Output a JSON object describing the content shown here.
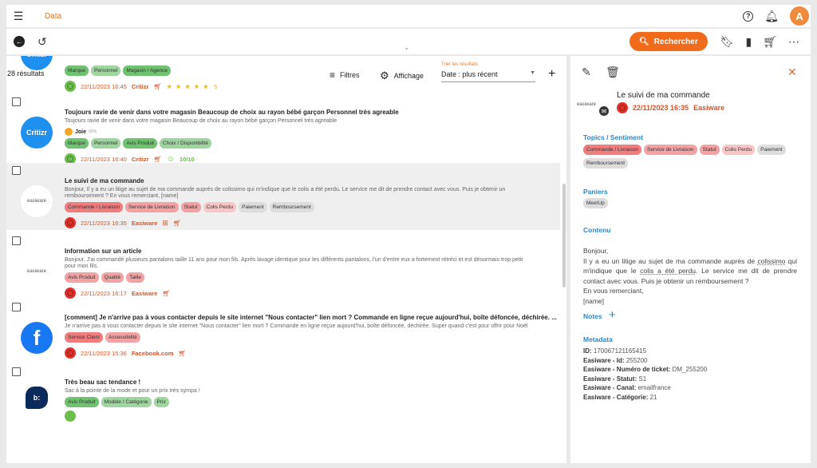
{
  "app": {
    "title": "Data",
    "avatar": "A"
  },
  "toolbar": {
    "search_label": "Rechercher"
  },
  "list": {
    "count": "28 résultats",
    "filters": "Filtres",
    "display": "Affichage",
    "sort_label": "Trier les résultats",
    "sort_value": "Date : plus récent",
    "items": [
      {
        "partial": true,
        "logo": "Critizr",
        "logo_color": "#1e90f0",
        "badge": "★",
        "tags": [
          [
            "Marque",
            "g1"
          ],
          [
            "Personnel",
            "g2"
          ],
          [
            "Magasin / Agence",
            "g1"
          ]
        ],
        "sentiment": "pos",
        "date": "22/11/2023 16:45",
        "source": "Critizr",
        "cart": true,
        "stars": "★ ★ ★ ★ ★",
        "rating": "5"
      },
      {
        "title": "Toujours ravie de venir dans votre magasin Beaucoup de choix au rayon bébé garçon Personnel très agreable",
        "desc": "Toujours ravie de venir dans votre magasin Beaucoup de choix au rayon bébé garçon Personnel très agreable",
        "logo": "Critizr",
        "logo_color": "#1e90f0",
        "badge": "⌕",
        "emotion": "Joie",
        "emotion_pct": "93%",
        "tags": [
          [
            "Marque",
            "g1"
          ],
          [
            "Personnel",
            "g2"
          ],
          [
            "Avis Produit",
            "g1"
          ],
          [
            "Choix / Disponibilité",
            "g2"
          ]
        ],
        "sentiment": "pos",
        "date": "22/11/2023 16:40",
        "source": "Critizr",
        "cart": true,
        "score": "10/10"
      },
      {
        "selected": true,
        "title": "Le suivi de ma commande",
        "desc": "Bonjour, Il y a eu un litige au sujet de ma commande auprès de colissimo qui m'indique que le colis a été perdu. Le service me dit de prendre contact avec vous. Puis je obtenir un remboursement ? En vous remerciant, [name]",
        "logo": "easiware",
        "logo_color": "#fff",
        "badge": "✉",
        "tags": [
          [
            "Commande / Livraison",
            "r1"
          ],
          [
            "Service de Livraison",
            "r2"
          ],
          [
            "Statut",
            "r2"
          ],
          [
            "Colis Perdu",
            "r3"
          ],
          [
            "Paiement",
            "x"
          ],
          [
            "Remboursement",
            "x"
          ]
        ],
        "sentiment": "neg",
        "date": "22/11/2023 16:35",
        "source": "Easiware",
        "cart": true
      },
      {
        "title": "Information sur un article",
        "desc": "Bonjour, J'ai commandé plusieurs pantalons taille 11 ans pour mon fils. Après lavage identique pour les différents pantalons, l'un d'entre eux a fortement rétréci et est désormais trop petit pour mon fils.",
        "logo": "easiware",
        "logo_color": "#fff",
        "badge": "✉",
        "tags": [
          [
            "Avis Produit",
            "r2"
          ],
          [
            "Qualité",
            "r2"
          ],
          [
            "Taille",
            "r2"
          ]
        ],
        "sentiment": "neg",
        "date": "22/11/2023 16:17",
        "source": "Easiware",
        "cart": true
      },
      {
        "title": "[comment] Je n'arrive pas à vous contacter depuis le site internet \"Nous contacter\" lien mort ? Commande en ligne reçue aujourd'hui, boîte défoncée, déchirée. ...",
        "desc": "Je n'arrive pas à vous contacter depuis le site internet \"Nous contacter\" lien mort ? Commande en ligne reçue aujourd'hui, boîte défoncée, déchirée. Super quand c'est pour offrir pour Noël",
        "logo": "f",
        "logo_color": "#1877f2",
        "tags": [
          [
            "Service Client",
            "r1"
          ],
          [
            "Accessibilité",
            "r2"
          ]
        ],
        "sentiment": "neg",
        "date": "22/11/2023 15:36",
        "source": "Facebook.com",
        "cart": true
      },
      {
        "title": "Très beau sac tendance !",
        "desc": "Sac à la pointe de la mode et pour un prix très sympa !",
        "logo": "b:",
        "logo_color": "#0b2a5c",
        "tags": [
          [
            "Avis Produit",
            "g1"
          ],
          [
            "Modèle / Catégorie",
            "g2"
          ],
          [
            "Prix",
            "g2"
          ]
        ],
        "sentiment": "pos"
      }
    ]
  },
  "detail": {
    "title": "Le suivi de ma commande",
    "logo": "easiware",
    "date": "22/11/2023 16:35",
    "source": "Easiware",
    "topics_label": "Topics / Sentiment",
    "topics": [
      [
        "Commande / Livraison",
        "r1"
      ],
      [
        "Service de Livraison",
        "r2"
      ],
      [
        "Statut",
        "r2"
      ],
      [
        "Colis Perdu",
        "r3"
      ],
      [
        "Paiement",
        "x"
      ],
      [
        "Remboursement",
        "x"
      ]
    ],
    "baskets_label": "Paniers",
    "baskets": [
      [
        "MeetUp",
        "x"
      ]
    ],
    "content_label": "Contenu",
    "content": {
      "l1": "Bonjour,",
      "l2a": "Il y a eu un litige au sujet de ma commande auprès de ",
      "l2b": "colissimo",
      "l2c": " qui m'indique que le ",
      "l2d": "colis a été perdu",
      "l2e": ". Le service me dit de prendre contact avec vous. Puis je obtenir un remboursement ?",
      "l3": "En vous remerciant,",
      "l4": "[name]"
    },
    "notes_label": "Notes",
    "metadata_label": "Metadata",
    "metadata": [
      [
        "ID:",
        "170067121165415"
      ],
      [
        "Easiware - Id:",
        "255200"
      ],
      [
        "Easiware - Numéro de ticket:",
        "DM_255200"
      ],
      [
        "Easiware - Statut:",
        "S1"
      ],
      [
        "Easiware - Canal:",
        "emailfrance"
      ],
      [
        "Easiware - Catégorie:",
        "21"
      ]
    ]
  },
  "colors": {
    "accent": "#f06b1a",
    "link": "#2a88c8",
    "positive": "#6cbf4c",
    "negative": "#e0302a"
  }
}
